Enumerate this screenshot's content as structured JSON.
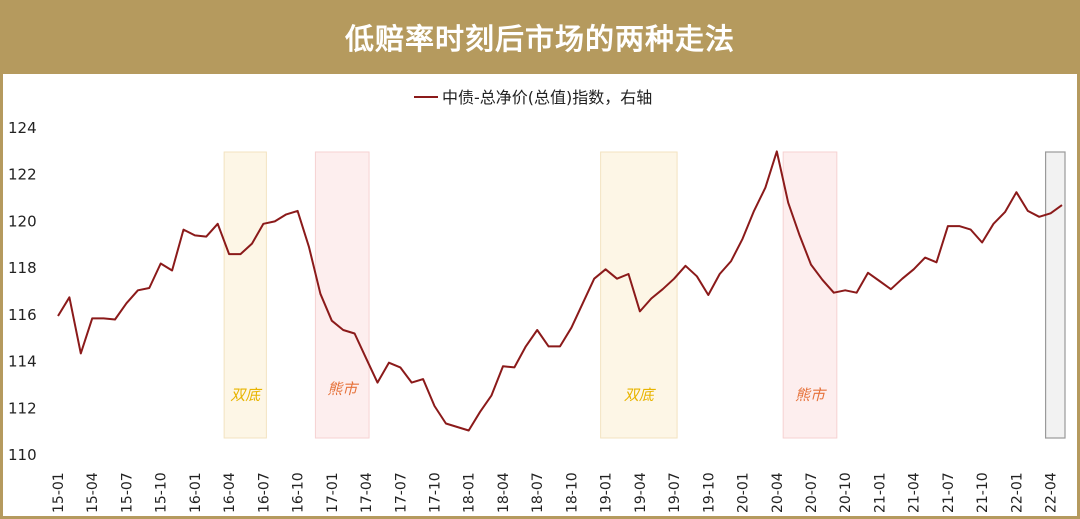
{
  "header": {
    "title": "低赔率时刻后市场的两种走法"
  },
  "colors": {
    "banner": "#b59a5e",
    "line": "#8b1a1a",
    "zone_yellow_fill": "#fdf6e6",
    "zone_yellow_stroke": "#f3e3c0",
    "zone_yellow_text": "#e8b400",
    "zone_red_fill": "#fdeeee",
    "zone_red_stroke": "#f6d2d2",
    "zone_red_text": "#e6733c",
    "zone_gray_fill": "#f2f2f2",
    "zone_gray_stroke": "#9a9a9a"
  },
  "chart_data": {
    "type": "line",
    "title": "",
    "legend": "中债-总净价(总值)指数，右轴",
    "legend_position": "top-center",
    "ylim": [
      110,
      124
    ],
    "yticks": [
      110,
      112,
      114,
      116,
      118,
      120,
      122,
      124
    ],
    "grid": false,
    "x_tick_labels": [
      "15-01",
      "15-04",
      "15-07",
      "15-10",
      "16-01",
      "16-04",
      "16-07",
      "16-10",
      "17-01",
      "17-04",
      "17-07",
      "17-10",
      "18-01",
      "18-04",
      "18-07",
      "18-10",
      "19-01",
      "19-04",
      "19-07",
      "19-10",
      "20-01",
      "20-04",
      "20-07",
      "20-10",
      "21-01",
      "21-04",
      "21-07",
      "21-10",
      "22-01",
      "22-04"
    ],
    "series": [
      {
        "name": "中债-总净价(总值)指数，右轴",
        "x": [
          "15-01",
          "15-02",
          "15-03",
          "15-04",
          "15-05",
          "15-06",
          "15-07",
          "15-08",
          "15-09",
          "15-10",
          "15-11",
          "15-12",
          "16-01",
          "16-02",
          "16-03",
          "16-04",
          "16-05",
          "16-06",
          "16-07",
          "16-08",
          "16-09",
          "16-10",
          "16-11",
          "16-12",
          "17-01",
          "17-02",
          "17-03",
          "17-04",
          "17-05",
          "17-06",
          "17-07",
          "17-08",
          "17-09",
          "17-10",
          "17-11",
          "17-12",
          "18-01",
          "18-02",
          "18-03",
          "18-04",
          "18-05",
          "18-06",
          "18-07",
          "18-08",
          "18-09",
          "18-10",
          "18-11",
          "18-12",
          "19-01",
          "19-02",
          "19-03",
          "19-04",
          "19-05",
          "19-06",
          "19-07",
          "19-08",
          "19-09",
          "19-10",
          "19-11",
          "19-12",
          "20-01",
          "20-02",
          "20-03",
          "20-04",
          "20-05",
          "20-06",
          "20-07",
          "20-08",
          "20-09",
          "20-10",
          "20-11",
          "20-12",
          "21-01",
          "21-02",
          "21-03",
          "21-04",
          "21-05",
          "21-06",
          "21-07",
          "21-08",
          "21-09",
          "21-10",
          "21-11",
          "21-12",
          "22-01",
          "22-02",
          "22-03",
          "22-04",
          "22-05"
        ],
        "values": [
          115.95,
          116.75,
          114.35,
          115.85,
          115.85,
          115.8,
          116.5,
          117.05,
          117.15,
          118.2,
          117.9,
          119.65,
          119.4,
          119.35,
          119.9,
          118.6,
          118.6,
          119.05,
          119.9,
          120.0,
          120.3,
          120.45,
          118.9,
          116.9,
          115.75,
          115.35,
          115.2,
          114.15,
          113.1,
          113.95,
          113.75,
          113.1,
          113.25,
          112.1,
          111.35,
          111.2,
          111.05,
          111.85,
          112.55,
          113.8,
          113.75,
          114.65,
          115.35,
          114.65,
          114.65,
          115.45,
          116.5,
          117.55,
          117.95,
          117.55,
          117.75,
          116.15,
          116.7,
          117.1,
          117.55,
          118.1,
          117.65,
          116.85,
          117.75,
          118.3,
          119.25,
          120.45,
          121.45,
          123.0,
          120.8,
          119.4,
          118.15,
          117.5,
          116.95,
          117.05,
          116.95,
          117.8,
          117.45,
          117.1,
          117.55,
          117.95,
          118.45,
          118.25,
          119.8,
          119.8,
          119.65,
          119.1,
          119.9,
          120.4,
          121.25,
          120.45,
          120.2,
          120.35,
          120.7
        ]
      }
    ],
    "annotations": [
      {
        "label": "双底",
        "kind": "yellow",
        "from": "16-04",
        "to": "16-07"
      },
      {
        "label": "熊市",
        "kind": "red",
        "from": "16-12",
        "to": "17-04"
      },
      {
        "label": "双底",
        "kind": "yellow",
        "from": "19-01",
        "to": "19-07"
      },
      {
        "label": "熊市",
        "kind": "red",
        "from": "20-05",
        "to": "20-09"
      },
      {
        "label": "",
        "kind": "gray",
        "from": "22-04",
        "to": "22-05"
      }
    ]
  }
}
